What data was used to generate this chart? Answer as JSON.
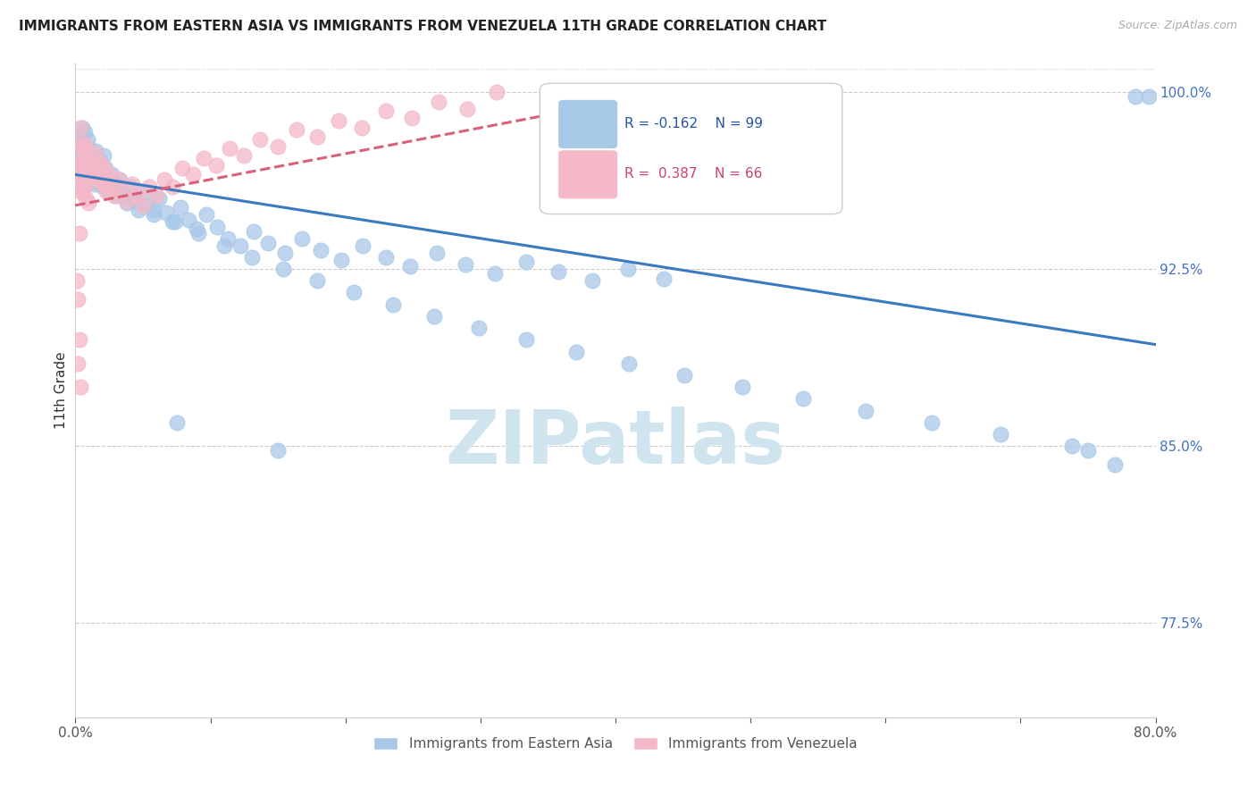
{
  "title": "IMMIGRANTS FROM EASTERN ASIA VS IMMIGRANTS FROM VENEZUELA 11TH GRADE CORRELATION CHART",
  "source": "Source: ZipAtlas.com",
  "ylabel": "11th Grade",
  "xlim": [
    0.0,
    0.8
  ],
  "ylim": [
    0.735,
    1.012
  ],
  "xtick_values": [
    0.0,
    0.1,
    0.2,
    0.3,
    0.4,
    0.5,
    0.6,
    0.7,
    0.8
  ],
  "ytick_values_right": [
    1.0,
    0.925,
    0.85,
    0.775
  ],
  "ytick_labels_right": [
    "100.0%",
    "92.5%",
    "85.0%",
    "77.5%"
  ],
  "blue_color": "#a8c8e8",
  "pink_color": "#f4b8c8",
  "blue_line_color": "#3a7abf",
  "pink_line_color": "#d95f7a",
  "watermark": "ZIPatlas",
  "watermark_color": "#d0e4f0",
  "legend_label_blue": "Immigrants from Eastern Asia",
  "legend_label_pink": "Immigrants from Venezuela",
  "blue_line_x0": 0.0,
  "blue_line_x1": 0.8,
  "blue_line_y0": 0.965,
  "blue_line_y1": 0.893,
  "pink_line_x0": 0.0,
  "pink_line_x1": 0.42,
  "pink_line_y0": 0.952,
  "pink_line_y1": 0.998,
  "blue_x": [
    0.002,
    0.003,
    0.003,
    0.004,
    0.004,
    0.005,
    0.005,
    0.006,
    0.006,
    0.007,
    0.007,
    0.008,
    0.008,
    0.009,
    0.009,
    0.01,
    0.01,
    0.011,
    0.012,
    0.013,
    0.014,
    0.015,
    0.016,
    0.017,
    0.018,
    0.019,
    0.02,
    0.021,
    0.022,
    0.023,
    0.025,
    0.027,
    0.029,
    0.031,
    0.033,
    0.036,
    0.038,
    0.041,
    0.044,
    0.047,
    0.05,
    0.054,
    0.058,
    0.062,
    0.067,
    0.072,
    0.078,
    0.084,
    0.09,
    0.097,
    0.105,
    0.113,
    0.122,
    0.132,
    0.143,
    0.155,
    0.168,
    0.182,
    0.197,
    0.213,
    0.23,
    0.248,
    0.268,
    0.289,
    0.311,
    0.334,
    0.358,
    0.383,
    0.409,
    0.436,
    0.032,
    0.044,
    0.058,
    0.074,
    0.091,
    0.11,
    0.131,
    0.154,
    0.179,
    0.206,
    0.235,
    0.266,
    0.299,
    0.334,
    0.371,
    0.41,
    0.451,
    0.494,
    0.539,
    0.585,
    0.634,
    0.685,
    0.738,
    0.75,
    0.77,
    0.785,
    0.795,
    0.075,
    0.15
  ],
  "blue_y": [
    0.975,
    0.968,
    0.982,
    0.961,
    0.978,
    0.972,
    0.985,
    0.965,
    0.979,
    0.969,
    0.983,
    0.961,
    0.975,
    0.968,
    0.98,
    0.962,
    0.976,
    0.965,
    0.972,
    0.968,
    0.961,
    0.975,
    0.969,
    0.962,
    0.971,
    0.965,
    0.96,
    0.973,
    0.968,
    0.963,
    0.958,
    0.965,
    0.961,
    0.956,
    0.963,
    0.957,
    0.953,
    0.96,
    0.954,
    0.95,
    0.957,
    0.952,
    0.948,
    0.955,
    0.949,
    0.945,
    0.951,
    0.946,
    0.942,
    0.948,
    0.943,
    0.938,
    0.935,
    0.941,
    0.936,
    0.932,
    0.938,
    0.933,
    0.929,
    0.935,
    0.93,
    0.926,
    0.932,
    0.927,
    0.923,
    0.928,
    0.924,
    0.92,
    0.925,
    0.921,
    0.96,
    0.955,
    0.95,
    0.945,
    0.94,
    0.935,
    0.93,
    0.925,
    0.92,
    0.915,
    0.91,
    0.905,
    0.9,
    0.895,
    0.89,
    0.885,
    0.88,
    0.875,
    0.87,
    0.865,
    0.86,
    0.855,
    0.85,
    0.848,
    0.842,
    0.998,
    0.998,
    0.86,
    0.848
  ],
  "pink_x": [
    0.002,
    0.003,
    0.003,
    0.004,
    0.004,
    0.005,
    0.005,
    0.006,
    0.006,
    0.007,
    0.007,
    0.008,
    0.008,
    0.009,
    0.009,
    0.01,
    0.01,
    0.011,
    0.012,
    0.013,
    0.014,
    0.015,
    0.016,
    0.017,
    0.018,
    0.019,
    0.02,
    0.021,
    0.022,
    0.023,
    0.025,
    0.027,
    0.029,
    0.032,
    0.035,
    0.038,
    0.042,
    0.046,
    0.05,
    0.055,
    0.06,
    0.066,
    0.072,
    0.079,
    0.087,
    0.095,
    0.104,
    0.114,
    0.125,
    0.137,
    0.15,
    0.164,
    0.179,
    0.195,
    0.212,
    0.23,
    0.249,
    0.269,
    0.29,
    0.312,
    0.001,
    0.002,
    0.002,
    0.003,
    0.003,
    0.004
  ],
  "pink_y": [
    0.965,
    0.978,
    0.958,
    0.985,
    0.97,
    0.976,
    0.962,
    0.971,
    0.958,
    0.978,
    0.964,
    0.969,
    0.955,
    0.975,
    0.961,
    0.967,
    0.953,
    0.97,
    0.965,
    0.971,
    0.967,
    0.974,
    0.969,
    0.963,
    0.97,
    0.965,
    0.961,
    0.968,
    0.963,
    0.958,
    0.965,
    0.96,
    0.956,
    0.963,
    0.958,
    0.954,
    0.961,
    0.956,
    0.952,
    0.96,
    0.956,
    0.963,
    0.96,
    0.968,
    0.965,
    0.972,
    0.969,
    0.976,
    0.973,
    0.98,
    0.977,
    0.984,
    0.981,
    0.988,
    0.985,
    0.992,
    0.989,
    0.996,
    0.993,
    1.0,
    0.92,
    0.912,
    0.885,
    0.94,
    0.895,
    0.875
  ]
}
